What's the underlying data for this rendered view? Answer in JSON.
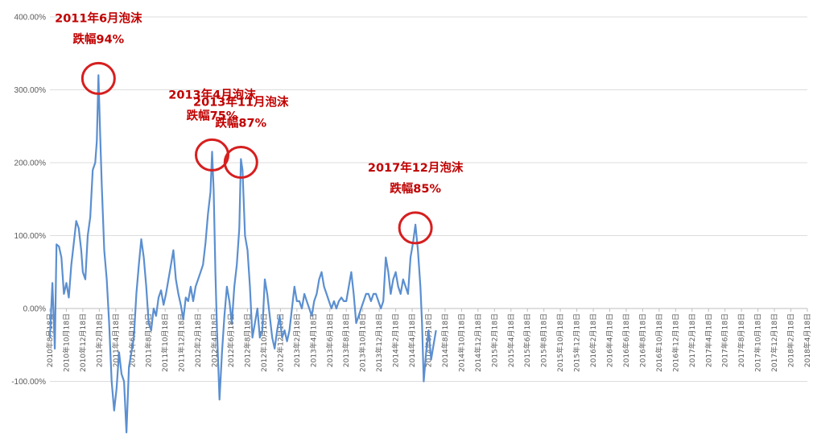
{
  "chart_data": {
    "type": "line",
    "title": "",
    "xlabel": "",
    "ylabel": "",
    "ylim": [
      -100,
      400
    ],
    "y_ticks": [
      "-100.00%",
      "0.00%",
      "100.00%",
      "200.00%",
      "300.00%",
      "400.00%"
    ],
    "y_tick_values": [
      -100,
      0,
      100,
      200,
      300,
      400
    ],
    "x_ticks": [
      "2010年8月18日",
      "2010年10月18日",
      "2010年12月18日",
      "2011年2月18日",
      "2011年4月18日",
      "2011年6月18日",
      "2011年8月18日",
      "2011年10月18日",
      "2011年12月18日",
      "2012年2月18日",
      "2012年4月18日",
      "2012年6月18日",
      "2012年8月18日",
      "2012年10月18日",
      "2012年12月18日",
      "2013年2月18日",
      "2013年4月18日",
      "2013年6月18日",
      "2013年8月18日",
      "2013年10月18日",
      "2013年12月18日",
      "2014年2月18日",
      "2014年4月18日",
      "2014年6月18日",
      "2014年8月18日",
      "2014年10月18日",
      "2014年12月18日",
      "2015年2月18日",
      "2015年4月18日",
      "2015年6月18日",
      "2015年8月18日",
      "2015年10月18日",
      "2015年12月18日",
      "2016年2月18日",
      "2016年4月18日",
      "2016年6月18日",
      "2016年8月18日",
      "2016年10月18日",
      "2016年12月18日",
      "2017年2月18日",
      "2017年4月18日",
      "2017年6月18日",
      "2017年8月18日",
      "2017年10月18日",
      "2017年12月18日",
      "2018年2月18日",
      "2018年4月18日"
    ],
    "grid": true,
    "line_color": "#5b8fd0",
    "series": [
      {
        "values": [
          [
            0,
            -40
          ],
          [
            0.15,
            35
          ],
          [
            0.3,
            -55
          ],
          [
            0.4,
            88
          ],
          [
            0.55,
            85
          ],
          [
            0.7,
            70
          ],
          [
            0.85,
            20
          ],
          [
            1.0,
            35
          ],
          [
            1.15,
            15
          ],
          [
            1.3,
            60
          ],
          [
            1.45,
            90
          ],
          [
            1.6,
            120
          ],
          [
            1.75,
            110
          ],
          [
            1.9,
            80
          ],
          [
            2.0,
            50
          ],
          [
            2.15,
            40
          ],
          [
            2.3,
            100
          ],
          [
            2.45,
            125
          ],
          [
            2.6,
            190
          ],
          [
            2.75,
            200
          ],
          [
            2.85,
            230
          ],
          [
            2.95,
            320
          ],
          [
            3.05,
            240
          ],
          [
            3.15,
            170
          ],
          [
            3.3,
            80
          ],
          [
            3.45,
            40
          ],
          [
            3.6,
            -20
          ],
          [
            3.75,
            -100
          ],
          [
            3.9,
            -140
          ],
          [
            4.05,
            -110
          ],
          [
            4.2,
            -60
          ],
          [
            4.35,
            -90
          ],
          [
            4.5,
            -100
          ],
          [
            4.65,
            -170
          ],
          [
            4.8,
            -80
          ],
          [
            4.95,
            -60
          ],
          [
            5.1,
            -40
          ],
          [
            5.25,
            20
          ],
          [
            5.4,
            60
          ],
          [
            5.55,
            95
          ],
          [
            5.7,
            70
          ],
          [
            5.85,
            30
          ],
          [
            6.0,
            -20
          ],
          [
            6.15,
            -30
          ],
          [
            6.3,
            0
          ],
          [
            6.45,
            -10
          ],
          [
            6.6,
            15
          ],
          [
            6.75,
            25
          ],
          [
            6.9,
            5
          ],
          [
            7.05,
            20
          ],
          [
            7.2,
            40
          ],
          [
            7.35,
            60
          ],
          [
            7.5,
            80
          ],
          [
            7.65,
            40
          ],
          [
            7.8,
            20
          ],
          [
            7.95,
            5
          ],
          [
            8.1,
            -15
          ],
          [
            8.25,
            15
          ],
          [
            8.4,
            10
          ],
          [
            8.55,
            30
          ],
          [
            8.7,
            10
          ],
          [
            8.85,
            30
          ],
          [
            9.0,
            40
          ],
          [
            9.15,
            50
          ],
          [
            9.3,
            60
          ],
          [
            9.45,
            90
          ],
          [
            9.6,
            130
          ],
          [
            9.75,
            160
          ],
          [
            9.85,
            215
          ],
          [
            9.95,
            160
          ],
          [
            10.05,
            50
          ],
          [
            10.15,
            -30
          ],
          [
            10.3,
            -125
          ],
          [
            10.45,
            -60
          ],
          [
            10.6,
            -10
          ],
          [
            10.75,
            30
          ],
          [
            10.9,
            10
          ],
          [
            11.05,
            -20
          ],
          [
            11.2,
            30
          ],
          [
            11.35,
            60
          ],
          [
            11.5,
            110
          ],
          [
            11.6,
            205
          ],
          [
            11.7,
            190
          ],
          [
            11.85,
            100
          ],
          [
            12.0,
            80
          ],
          [
            12.15,
            30
          ],
          [
            12.3,
            -40
          ],
          [
            12.45,
            -20
          ],
          [
            12.6,
            0
          ],
          [
            12.75,
            -40
          ],
          [
            12.9,
            -30
          ],
          [
            13.05,
            40
          ],
          [
            13.2,
            20
          ],
          [
            13.35,
            -10
          ],
          [
            13.5,
            -40
          ],
          [
            13.65,
            -55
          ],
          [
            13.8,
            -30
          ],
          [
            13.95,
            -10
          ],
          [
            14.1,
            -40
          ],
          [
            14.25,
            -30
          ],
          [
            14.4,
            -45
          ],
          [
            14.55,
            -30
          ],
          [
            14.7,
            0
          ],
          [
            14.85,
            30
          ],
          [
            15.0,
            10
          ],
          [
            15.15,
            10
          ],
          [
            15.3,
            0
          ],
          [
            15.45,
            20
          ],
          [
            15.6,
            10
          ],
          [
            15.75,
            0
          ],
          [
            15.9,
            -10
          ],
          [
            16.05,
            10
          ],
          [
            16.2,
            20
          ],
          [
            16.35,
            40
          ],
          [
            16.5,
            50
          ],
          [
            16.65,
            30
          ],
          [
            16.8,
            20
          ],
          [
            16.95,
            10
          ],
          [
            17.1,
            0
          ],
          [
            17.25,
            10
          ],
          [
            17.4,
            0
          ],
          [
            17.55,
            10
          ],
          [
            17.7,
            15
          ],
          [
            17.85,
            10
          ],
          [
            18.0,
            10
          ],
          [
            18.15,
            30
          ],
          [
            18.3,
            50
          ],
          [
            18.45,
            20
          ],
          [
            18.6,
            -20
          ],
          [
            18.75,
            -10
          ],
          [
            18.9,
            0
          ],
          [
            19.05,
            10
          ],
          [
            19.2,
            20
          ],
          [
            19.35,
            20
          ],
          [
            19.5,
            10
          ],
          [
            19.65,
            20
          ],
          [
            19.8,
            20
          ],
          [
            19.95,
            10
          ],
          [
            20.1,
            0
          ],
          [
            20.25,
            10
          ],
          [
            20.4,
            70
          ],
          [
            20.55,
            50
          ],
          [
            20.7,
            20
          ],
          [
            20.85,
            40
          ],
          [
            21.0,
            50
          ],
          [
            21.15,
            30
          ],
          [
            21.3,
            20
          ],
          [
            21.45,
            40
          ],
          [
            21.6,
            30
          ],
          [
            21.75,
            20
          ],
          [
            21.9,
            70
          ],
          [
            22.05,
            90
          ],
          [
            22.2,
            115
          ],
          [
            22.35,
            80
          ],
          [
            22.5,
            30
          ],
          [
            22.6,
            -20
          ],
          [
            22.7,
            -100
          ],
          [
            22.85,
            -60
          ],
          [
            23.0,
            -30
          ],
          [
            23.15,
            -70
          ],
          [
            23.3,
            -50
          ],
          [
            23.45,
            -30
          ]
        ]
      }
    ],
    "annotations": [
      {
        "lines": [
          "2011年6月泡沫",
          "跌幅94%"
        ],
        "peak_x": 2.95,
        "peak_y": 320
      },
      {
        "lines": [
          "2013年4月泡沫",
          "跌幅75%"
        ],
        "peak_x": 9.85,
        "peak_y": 215
      },
      {
        "lines": [
          "2013年11月泡沫",
          "跌幅87%"
        ],
        "peak_x": 11.6,
        "peak_y": 205
      },
      {
        "lines": [
          "2017年12月泡沫",
          "跌幅85%"
        ],
        "peak_x": 22.2,
        "peak_y": 115
      }
    ]
  }
}
